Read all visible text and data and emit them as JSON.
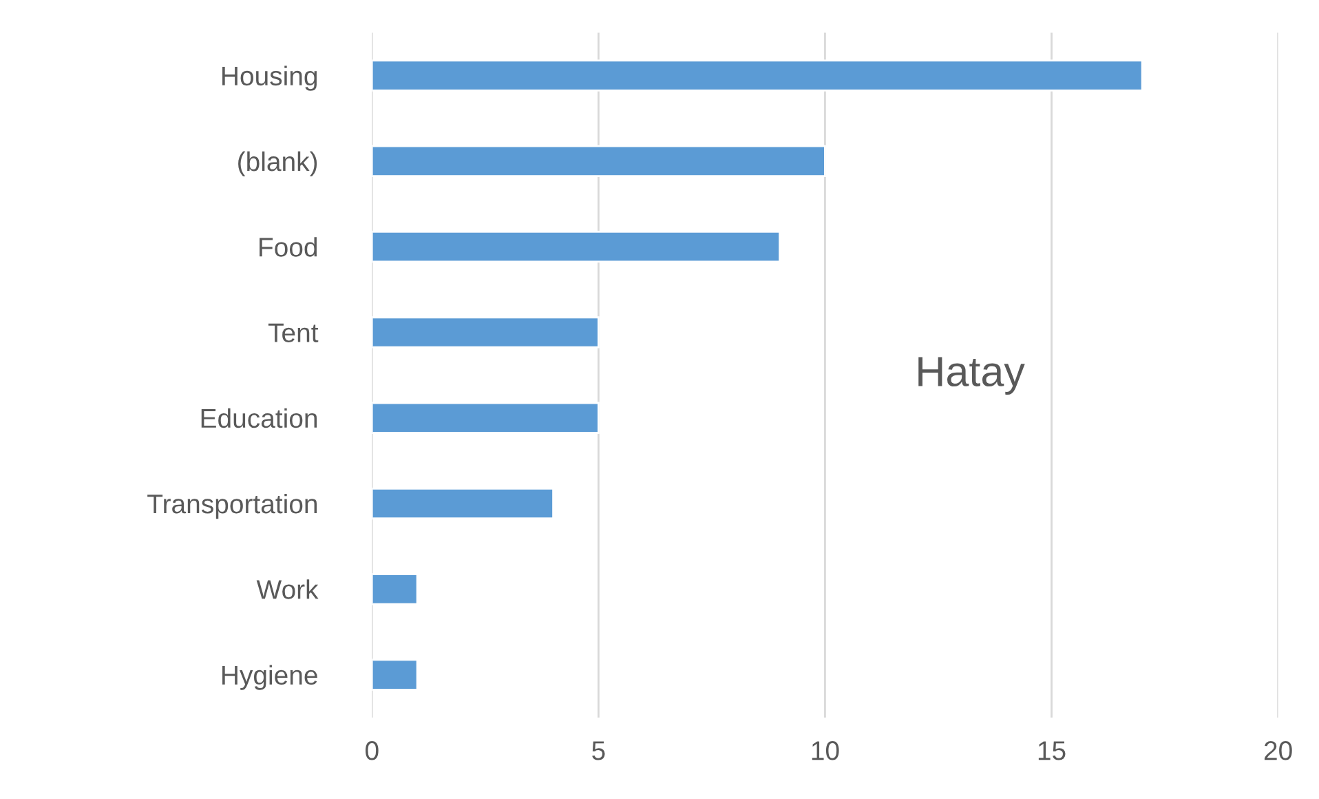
{
  "chart_data": {
    "type": "bar",
    "orientation": "horizontal",
    "title": "Hatay",
    "categories": [
      "Housing",
      "(blank)",
      "Food",
      "Tent",
      "Education",
      "Transportation",
      "Work",
      "Hygiene"
    ],
    "values": [
      17,
      10,
      9,
      5,
      5,
      4,
      1,
      1
    ],
    "color": "#5b9bd5",
    "xlim": [
      0,
      20
    ],
    "xticks": [
      0,
      5,
      10,
      15,
      20
    ],
    "grid": "x"
  }
}
